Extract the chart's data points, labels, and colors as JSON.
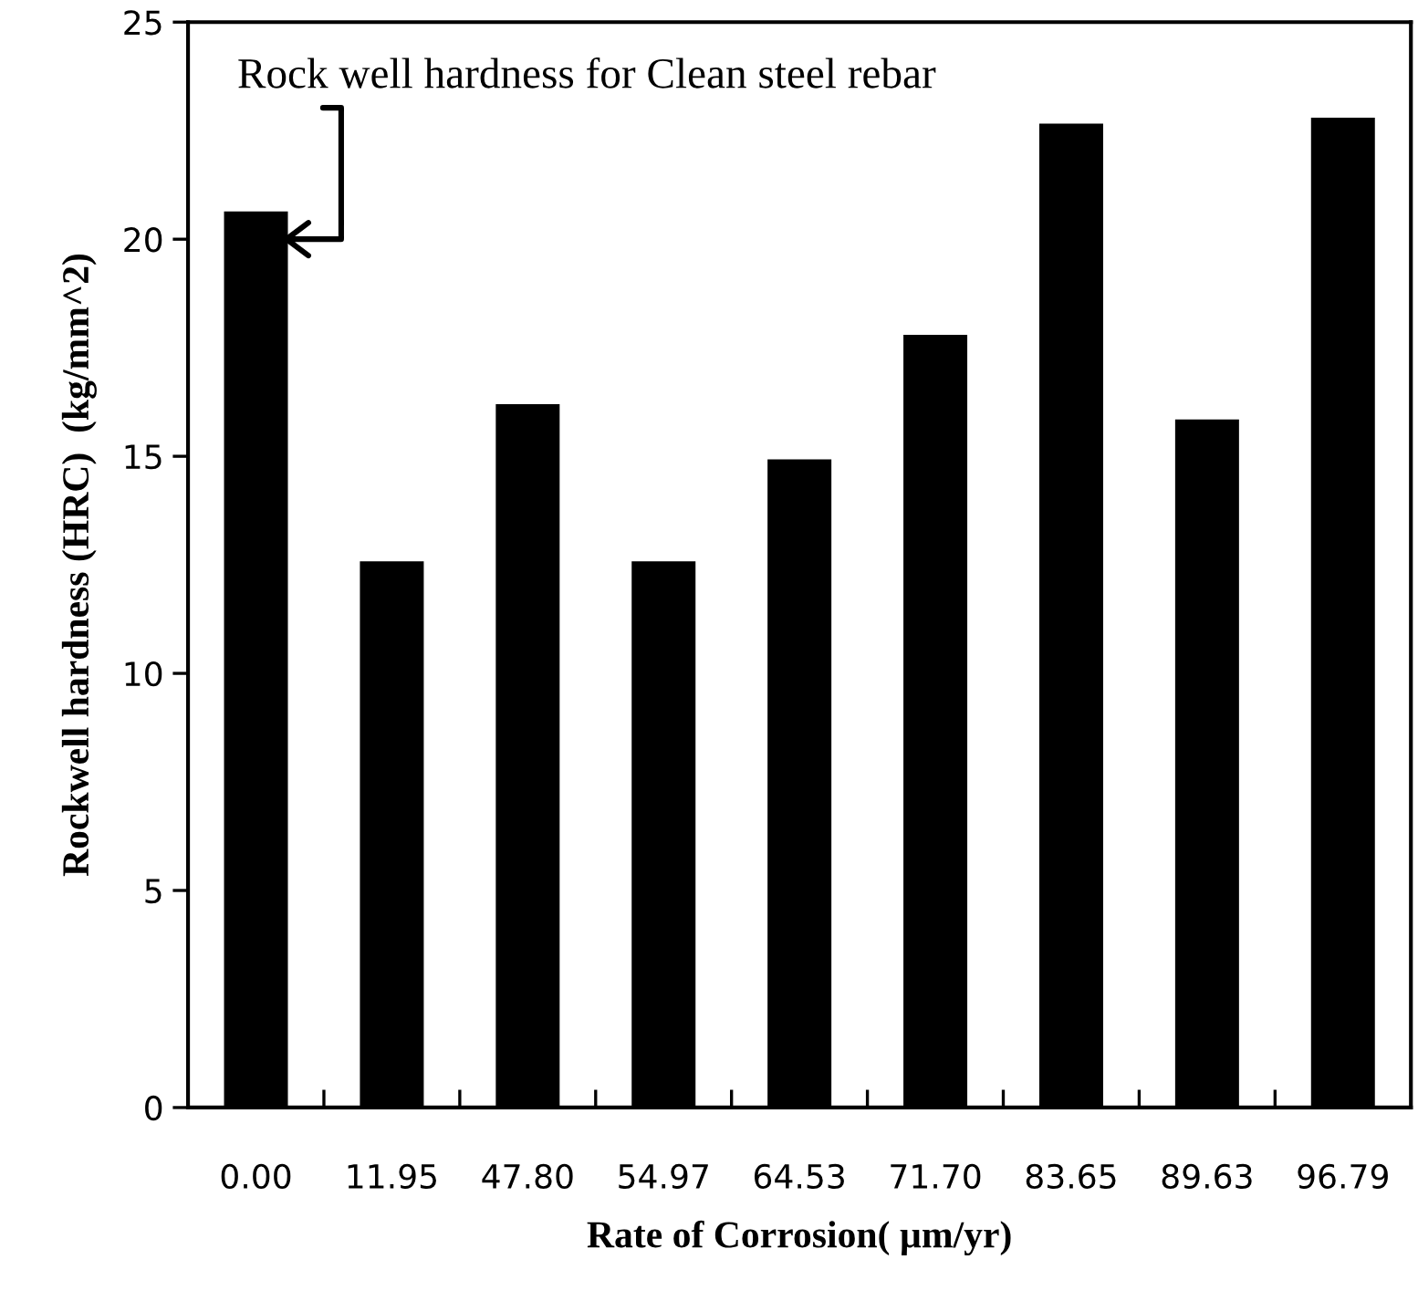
{
  "chart_data": {
    "type": "bar",
    "xlabel": "Rate of Corrosion( µm/yr)",
    "ylabel": "Rockwell hardness (HRC)  (kg/mm^2)",
    "categories": [
      "0.00",
      "11.95",
      "47.80",
      "54.97",
      "64.53",
      "71.70",
      "83.65",
      "89.63",
      "96.79"
    ],
    "values": [
      20.64,
      12.58,
      16.2,
      12.58,
      14.93,
      17.8,
      22.66,
      15.85,
      22.8
    ],
    "color": "#000000",
    "ylim": [
      0,
      25
    ],
    "yticks": [
      0,
      5,
      10,
      15,
      20,
      25
    ],
    "grid": false,
    "legend": false,
    "annotations": [
      {
        "text": "Rock well hardness for Clean steel rebar",
        "x": "0.00",
        "y": 20.64
      }
    ]
  }
}
